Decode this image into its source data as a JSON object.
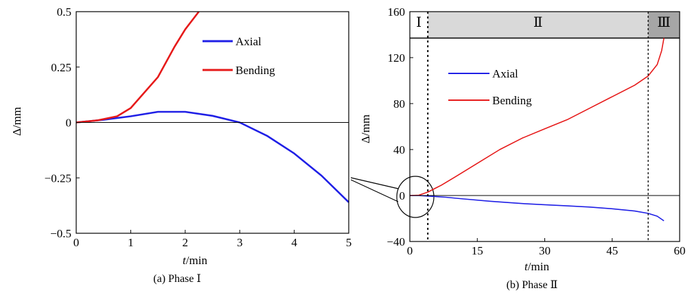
{
  "chart_data": [
    {
      "type": "line",
      "caption": "(a) Phase Ⅰ",
      "xlabel_italic": "t",
      "xlabel_unit": "/min",
      "ylabel": "Δ/mm",
      "xlim": [
        0,
        5
      ],
      "ylim": [
        -0.5,
        0.5
      ],
      "xticks": [
        "0",
        "1",
        "2",
        "3",
        "4",
        "5"
      ],
      "xtick_values": [
        0,
        1,
        2,
        3,
        4,
        5
      ],
      "yticks": [
        "0.5",
        "0.25",
        "0",
        "−0.25",
        "−0.5"
      ],
      "ytick_values": [
        0.5,
        0.25,
        0,
        -0.25,
        -0.5
      ],
      "zero_line": true,
      "legend_position": "top-right",
      "series": [
        {
          "name": "Axial",
          "color": "#1f1fe6",
          "points": [
            [
              0,
              0
            ],
            [
              0.5,
              0.012
            ],
            [
              1.0,
              0.028
            ],
            [
              1.5,
              0.048
            ],
            [
              2.0,
              0.048
            ],
            [
              2.5,
              0.03
            ],
            [
              3.0,
              0.0
            ],
            [
              3.5,
              -0.06
            ],
            [
              4.0,
              -0.14
            ],
            [
              4.5,
              -0.24
            ],
            [
              5.0,
              -0.36
            ]
          ]
        },
        {
          "name": "Bending",
          "color": "#e61a1a",
          "points": [
            [
              0,
              0
            ],
            [
              0.4,
              0.01
            ],
            [
              0.75,
              0.028
            ],
            [
              1.0,
              0.065
            ],
            [
              1.5,
              0.205
            ],
            [
              1.8,
              0.34
            ],
            [
              2.0,
              0.42
            ],
            [
              2.25,
              0.5
            ]
          ]
        }
      ]
    },
    {
      "type": "line",
      "caption": "(b) Phase Ⅱ",
      "xlabel_italic": "t",
      "xlabel_unit": "/min",
      "ylabel": "Δ/mm",
      "xlim": [
        0,
        60
      ],
      "ylim": [
        -40,
        160
      ],
      "xticks": [
        "0",
        "15",
        "30",
        "45",
        "60"
      ],
      "xtick_values": [
        0,
        15,
        30,
        45,
        60
      ],
      "yticks": [
        "160",
        "120",
        "80",
        "40",
        "0",
        "−40"
      ],
      "ytick_values": [
        160,
        120,
        80,
        40,
        0,
        -40
      ],
      "zero_line": true,
      "phase_boundaries": [
        4,
        53
      ],
      "phase_band_lower": 137,
      "phases": [
        {
          "label": "Ⅰ",
          "from": 0,
          "to": 4,
          "color": "#ffffff"
        },
        {
          "label": "Ⅱ",
          "from": 4,
          "to": 53,
          "color": "#d9d9d9"
        },
        {
          "label": "Ⅲ",
          "from": 53,
          "to": 60,
          "color": "#a6a6a6"
        }
      ],
      "legend_position": "top-left",
      "series": [
        {
          "name": "Axial",
          "color": "#1f1fe6",
          "points": [
            [
              0,
              0
            ],
            [
              2,
              0
            ],
            [
              4,
              -0.5
            ],
            [
              8,
              -1.5
            ],
            [
              12,
              -3
            ],
            [
              18,
              -5
            ],
            [
              25,
              -7
            ],
            [
              30,
              -8
            ],
            [
              35,
              -9
            ],
            [
              40,
              -10
            ],
            [
              45,
              -11.5
            ],
            [
              50,
              -13.5
            ],
            [
              53,
              -15.5
            ],
            [
              55,
              -18
            ],
            [
              56.5,
              -22
            ]
          ]
        },
        {
          "name": "Bending",
          "color": "#e61a1a",
          "points": [
            [
              0,
              0
            ],
            [
              2,
              0.3
            ],
            [
              4,
              3
            ],
            [
              7,
              9
            ],
            [
              10,
              16
            ],
            [
              15,
              28
            ],
            [
              20,
              40
            ],
            [
              25,
              50
            ],
            [
              30,
              58
            ],
            [
              35,
              66
            ],
            [
              40,
              76
            ],
            [
              45,
              86
            ],
            [
              50,
              96
            ],
            [
              53,
              104
            ],
            [
              55,
              114
            ],
            [
              56,
              126
            ],
            [
              56.5,
              137
            ]
          ]
        }
      ]
    }
  ]
}
